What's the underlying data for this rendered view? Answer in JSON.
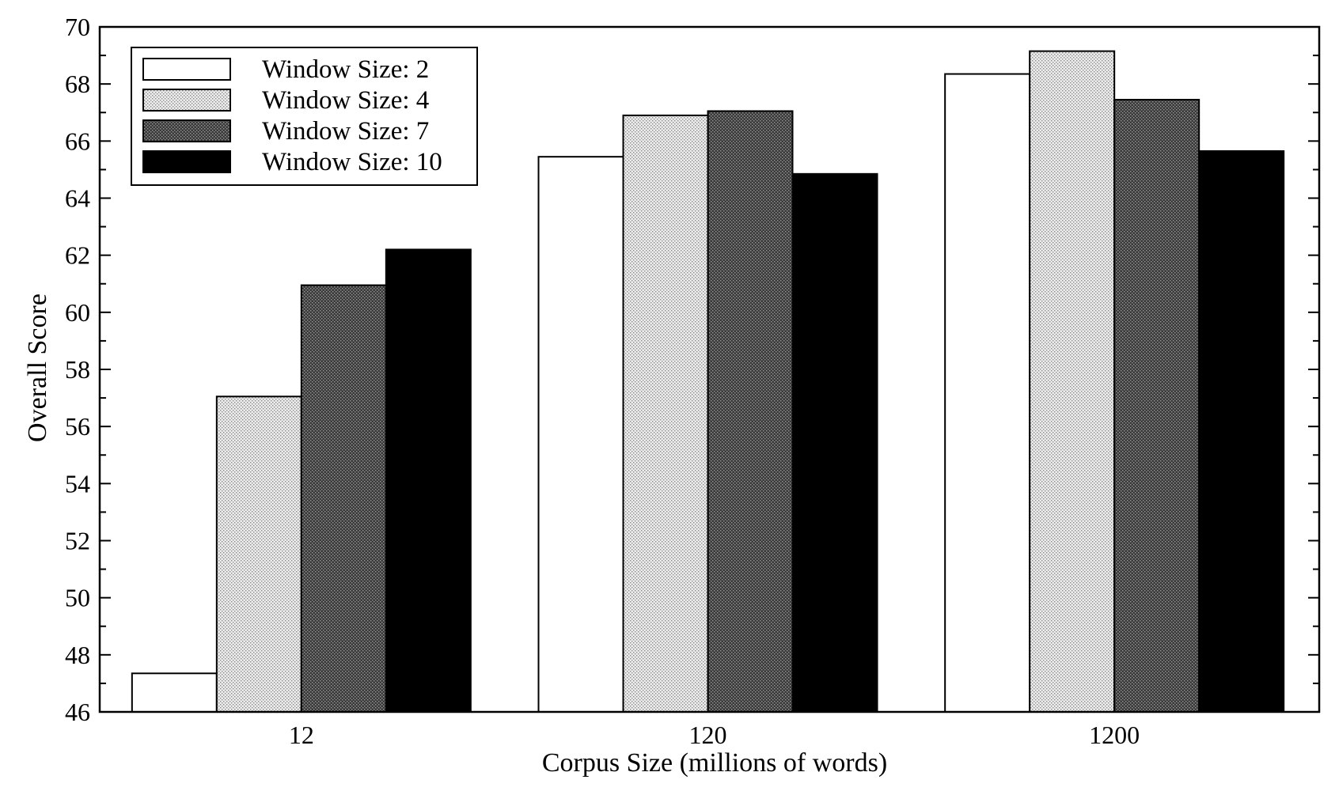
{
  "chart_data": {
    "type": "bar",
    "title": "",
    "xlabel": "Corpus Size (millions of words)",
    "ylabel": "Overall Score",
    "categories": [
      "12",
      "120",
      "1200"
    ],
    "ylim": [
      46,
      70
    ],
    "yticks": [
      46,
      48,
      50,
      52,
      54,
      56,
      58,
      60,
      62,
      64,
      66,
      68,
      70
    ],
    "grid": false,
    "legend_position": "top-left",
    "series": [
      {
        "name": "Window Size: 2",
        "values": [
          47.35,
          65.45,
          68.35
        ],
        "fill": "white"
      },
      {
        "name": "Window Size: 4",
        "values": [
          57.05,
          66.9,
          69.15
        ],
        "fill": "light-dots"
      },
      {
        "name": "Window Size: 7",
        "values": [
          60.95,
          67.05,
          67.45
        ],
        "fill": "dark-dots"
      },
      {
        "name": "Window Size: 10",
        "values": [
          62.2,
          64.85,
          65.65
        ],
        "fill": "black"
      }
    ]
  }
}
